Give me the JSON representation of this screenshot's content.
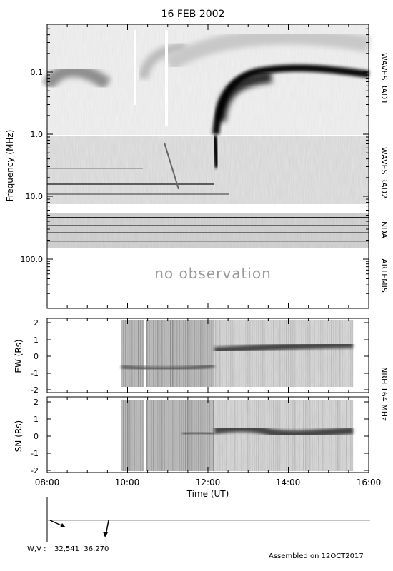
{
  "chart_data": {
    "type": "heatmap",
    "title": "16 FEB 2002",
    "xlabel": "Time (UT)",
    "x_ticks": [
      "08:00",
      "10:00",
      "12:00",
      "14:00",
      "16:00"
    ],
    "x_range_hours": [
      8,
      16
    ],
    "panels": [
      {
        "name": "spectrum",
        "ylabel": "Frequency (MHz)",
        "y_scale": "log",
        "y_ticks": [
          "0.1",
          "1.0",
          "10.0",
          "100.0"
        ],
        "bands": [
          {
            "label": "WAVES RAD1",
            "freq_range_mhz": [
              0.02,
              1.0
            ]
          },
          {
            "label": "WAVES RAD2",
            "freq_range_mhz": [
              1.0,
              14.0
            ]
          },
          {
            "label": "NDA",
            "freq_range_mhz": [
              20,
              70
            ]
          },
          {
            "label": "ARTEMIS",
            "freq_range_mhz": [
              100,
              650
            ],
            "note": "no observation"
          }
        ]
      },
      {
        "name": "ew",
        "ylabel": "EW (Rs)",
        "y_ticks": [
          "2",
          "1",
          "0",
          "-1",
          "-2"
        ],
        "observed_hours": [
          9.83,
          15.58
        ]
      },
      {
        "name": "sn",
        "ylabel": "SN (Rs)",
        "y_ticks": [
          "2",
          "1",
          "0",
          "-1",
          "-2"
        ],
        "observed_hours": [
          9.83,
          15.58
        ]
      }
    ],
    "nrh_label": "NRH 164 MHz",
    "events": [
      {
        "time_hours": 12.15,
        "description": "type III burst"
      }
    ]
  },
  "footer": {
    "wv_label": "W,V :",
    "wv_values": "32,541  36,270",
    "assembled": "Assembled on 12OCT2017"
  }
}
